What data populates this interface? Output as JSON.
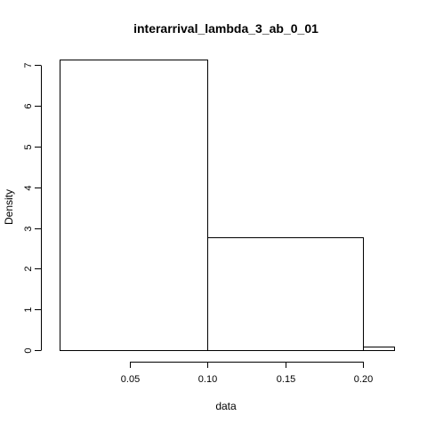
{
  "chart_data": {
    "type": "bar",
    "title": "interarrival_lambda_3_ab_0_01",
    "xlabel": "data",
    "ylabel": "Density",
    "bins": [
      {
        "x0": 0.005,
        "x1": 0.1,
        "density": 7.15
      },
      {
        "x0": 0.1,
        "x1": 0.2,
        "density": 2.77
      },
      {
        "x0": 0.2,
        "x1": 0.22,
        "density": 0.08
      }
    ],
    "xlim": [
      0.0005,
      0.2245
    ],
    "ylim": [
      0,
      7.25
    ],
    "xticks": [
      0.05,
      0.1,
      0.15,
      0.2
    ],
    "xtick_labels": [
      "0.05",
      "0.10",
      "0.15",
      "0.20"
    ],
    "yticks": [
      0,
      1,
      2,
      3,
      4,
      5,
      6,
      7
    ],
    "ytick_labels": [
      "0",
      "1",
      "2",
      "3",
      "4",
      "5",
      "6",
      "7"
    ],
    "grid": false,
    "colors": {
      "bar_stroke": "#000000",
      "bar_fill": "none",
      "background": "#ffffff"
    }
  }
}
